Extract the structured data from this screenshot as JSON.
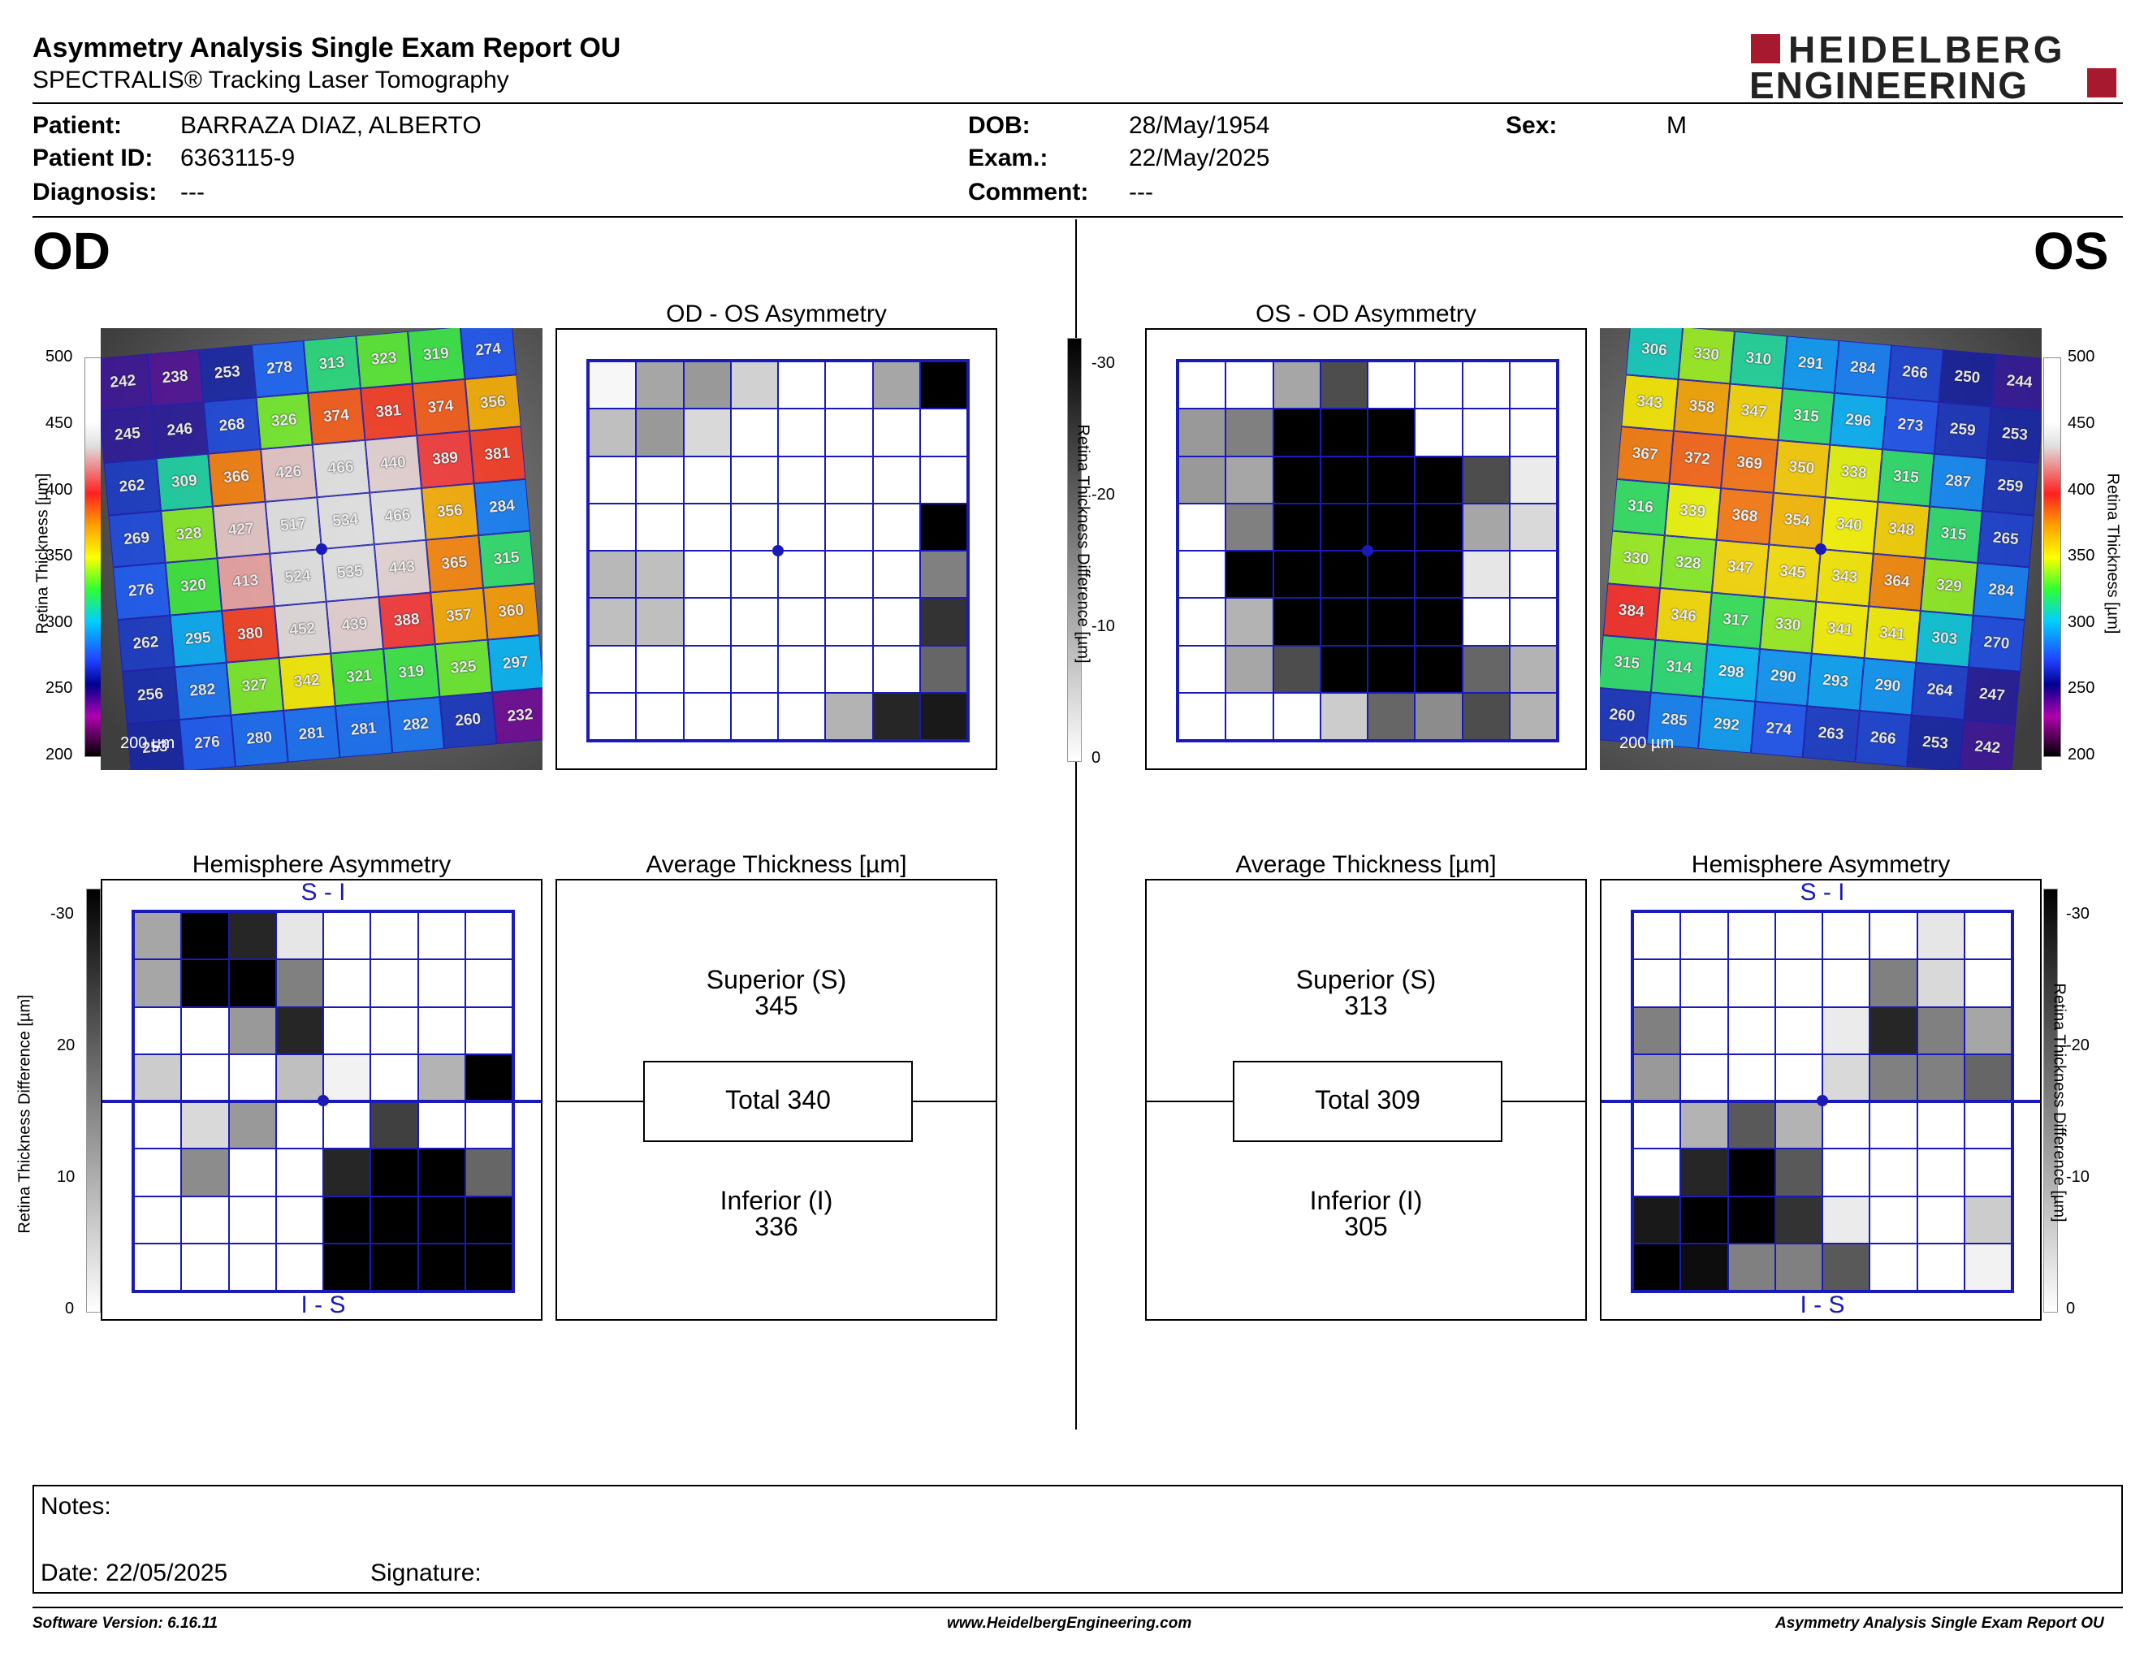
{
  "report": {
    "title": "Asymmetry Analysis Single Exam Report OU",
    "subtitle": "SPECTRALIS® Tracking Laser Tomography",
    "logo_line1": "HEIDELBERG",
    "logo_line2": "ENGINEERING"
  },
  "patient": {
    "patient_label": "Patient:",
    "patient_value": "BARRAZA DIAZ, ALBERTO",
    "id_label": "Patient ID:",
    "id_value": "6363115-9",
    "diagnosis_label": "Diagnosis:",
    "diagnosis_value": "---",
    "dob_label": "DOB:",
    "dob_value": "28/May/1954",
    "exam_label": "Exam.:",
    "exam_value": "22/May/2025",
    "comment_label": "Comment:",
    "comment_value": "---",
    "sex_label": "Sex:",
    "sex_value": "M"
  },
  "eyes": {
    "od": "OD",
    "os": "OS"
  },
  "panels": {
    "od_asym_title": "OD - OS Asymmetry",
    "os_asym_title": "OS - OD Asymmetry",
    "hemi_title_left": "Hemisphere Asymmetry",
    "hemi_title_right": "Hemisphere Asymmetry",
    "avg_title_left": "Average Thickness [µm]",
    "avg_title_right": "Average Thickness [µm]",
    "si": "S - I",
    "is": "I - S"
  },
  "scales": {
    "thickness_label": "Retina Thickness [µm]",
    "thickness_ticks": [
      "500",
      "450",
      "400",
      "350",
      "300",
      "250",
      "200"
    ],
    "diff_label": "Retina Thickness Difference [µm]",
    "diff_ticks": [
      "-30",
      "-20",
      "-10",
      "0"
    ],
    "hemi_ticks": [
      "-30",
      "20",
      "10",
      "0"
    ],
    "scale_bar": "200 µm"
  },
  "od_thickness": [
    [
      "242",
      "238",
      "253",
      "278",
      "313",
      "323",
      "319",
      "274"
    ],
    [
      "245",
      "246",
      "268",
      "326",
      "374",
      "381",
      "374",
      "356"
    ],
    [
      "262",
      "309",
      "366",
      "426",
      "466",
      "440",
      "389",
      "381"
    ],
    [
      "269",
      "328",
      "427",
      "517",
      "534",
      "466",
      "356",
      "284"
    ],
    [
      "276",
      "320",
      "413",
      "524",
      "535",
      "443",
      "365",
      "315"
    ],
    [
      "262",
      "295",
      "380",
      "452",
      "439",
      "388",
      "357",
      "360"
    ],
    [
      "256",
      "282",
      "327",
      "342",
      "321",
      "319",
      "325",
      "297"
    ],
    [
      "253",
      "276",
      "280",
      "281",
      "281",
      "282",
      "260",
      "232"
    ]
  ],
  "os_thickness": [
    [
      "306",
      "330",
      "310",
      "291",
      "284",
      "266",
      "250",
      "244"
    ],
    [
      "343",
      "358",
      "347",
      "315",
      "296",
      "273",
      "259",
      "253"
    ],
    [
      "367",
      "372",
      "369",
      "350",
      "338",
      "315",
      "287",
      "259"
    ],
    [
      "316",
      "339",
      "368",
      "354",
      "340",
      "348",
      "315",
      "265"
    ],
    [
      "330",
      "328",
      "347",
      "345",
      "343",
      "364",
      "329",
      "284"
    ],
    [
      "384",
      "346",
      "317",
      "330",
      "341",
      "341",
      "303",
      "270"
    ],
    [
      "315",
      "314",
      "298",
      "290",
      "293",
      "290",
      "264",
      "247"
    ],
    [
      "260",
      "285",
      "292",
      "274",
      "263",
      "266",
      "253",
      "242"
    ]
  ],
  "od_asym_gray": [
    [
      0.03,
      0.35,
      0.4,
      0.18,
      0,
      0,
      0.35,
      1
    ],
    [
      0.25,
      0.4,
      0.15,
      0,
      0,
      0,
      0,
      0
    ],
    [
      0,
      0,
      0,
      0,
      0,
      0,
      0,
      0
    ],
    [
      0,
      0,
      0,
      0,
      0,
      0,
      0,
      1
    ],
    [
      0.28,
      0.25,
      0,
      0,
      0,
      0,
      0,
      0.5
    ],
    [
      0.25,
      0.25,
      0,
      0,
      0,
      0,
      0,
      0.8
    ],
    [
      0,
      0,
      0,
      0,
      0,
      0,
      0,
      0.6
    ],
    [
      0,
      0,
      0,
      0,
      0,
      0.3,
      0.85,
      0.9
    ]
  ],
  "os_asym_gray": [
    [
      0,
      0,
      0.35,
      0.7,
      0,
      0,
      0,
      0
    ],
    [
      0.4,
      0.5,
      1,
      1,
      1,
      0,
      0,
      0
    ],
    [
      0.4,
      0.35,
      1,
      1,
      1,
      1,
      0.7,
      0.08
    ],
    [
      0,
      0.5,
      1,
      1,
      1,
      1,
      0.35,
      0.15
    ],
    [
      0,
      1,
      1,
      1,
      1,
      1,
      0.1,
      0
    ],
    [
      0,
      0.3,
      1,
      1,
      1,
      1,
      0,
      0
    ],
    [
      0,
      0.35,
      0.7,
      1,
      1,
      1,
      0.6,
      0.3
    ],
    [
      0,
      0,
      0,
      0.2,
      0.6,
      0.45,
      0.7,
      0.3
    ]
  ],
  "od_hemi_gray": [
    [
      0.35,
      1,
      0.85,
      0.1,
      0,
      0,
      0,
      0
    ],
    [
      0.35,
      1,
      1,
      0.5,
      0,
      0,
      0,
      0
    ],
    [
      0,
      0,
      0.4,
      0.85,
      0,
      0,
      0,
      0
    ],
    [
      0.2,
      0,
      0,
      0.25,
      0.05,
      0,
      0.3,
      1
    ],
    [
      0,
      0.15,
      0.4,
      0,
      0,
      0.75,
      0,
      0
    ],
    [
      0,
      0.45,
      0,
      0,
      0.85,
      1,
      1,
      0.6
    ],
    [
      0,
      0,
      0,
      0,
      1,
      1,
      1,
      1
    ],
    [
      0,
      0,
      0,
      0,
      1,
      1,
      1,
      1
    ]
  ],
  "os_hemi_gray": [
    [
      0,
      0,
      0,
      0,
      0,
      0,
      0.1,
      0
    ],
    [
      0,
      0,
      0,
      0,
      0,
      0.5,
      0.15,
      0
    ],
    [
      0.5,
      0,
      0,
      0,
      0.08,
      0.85,
      0.5,
      0.35
    ],
    [
      0.4,
      0,
      0,
      0,
      0.15,
      0.5,
      0.5,
      0.6
    ],
    [
      0,
      0.3,
      0.65,
      0.3,
      0,
      0,
      0,
      0
    ],
    [
      0,
      0.85,
      1,
      0.65,
      0,
      0,
      0,
      0
    ],
    [
      0.9,
      1,
      1,
      0.8,
      0.08,
      0,
      0,
      0.2
    ],
    [
      1,
      0.95,
      0.5,
      0.5,
      0.65,
      0,
      0,
      0.05
    ]
  ],
  "average_left": {
    "superior_label": "Superior (S)",
    "superior": "345",
    "total": "Total 340",
    "inferior_label": "Inferior (I)",
    "inferior": "336"
  },
  "average_right": {
    "superior_label": "Superior (S)",
    "superior": "313",
    "total": "Total 309",
    "inferior_label": "Inferior (I)",
    "inferior": "305"
  },
  "notes": {
    "notes_label": "Notes:",
    "date": "Date: 22/05/2025",
    "signature": "Signature:"
  },
  "footer": {
    "software": "Software Version: 6.16.11",
    "website": "www.HeidelbergEngineering.com",
    "report": "Asymmetry Analysis Single Exam Report OU"
  },
  "colors": {
    "grid": "#1a1ab8",
    "logo_red": "#a6192e"
  }
}
